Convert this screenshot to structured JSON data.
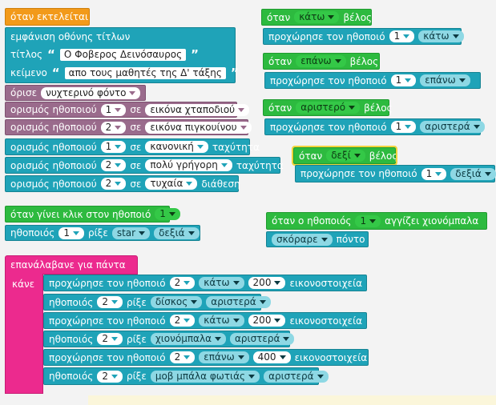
{
  "program": {
    "start_hat": "όταν εκτελείται",
    "title_screen": "εμφάνιση οθόνης τίτλων",
    "title_label": "τίτλος",
    "title_value": "Ο Φοβερος Δεινόσαυρος",
    "text_label": "κείμενο",
    "text_value": "απο τους μαθητές της Δ' τάξης",
    "set_bg": "όρισε",
    "bg_value": "νυχτερινό φόντο",
    "set_actor": "ορισμός ηθοποιού",
    "to": "σε",
    "speed": "ταχύτητα",
    "mood": "διάθεση",
    "actors": [
      {
        "id": "1",
        "image": "εικόνα χταποδιού"
      },
      {
        "id": "2",
        "image": "εικόνα πιγκουίνου"
      }
    ],
    "speeds": [
      {
        "id": "1",
        "value": "κανονική"
      },
      {
        "id": "2",
        "value": "πολύ γρήγορη"
      }
    ],
    "mood_row": {
      "id": "2",
      "value": "τυχαία"
    }
  },
  "click_event": {
    "hat": "όταν γίνει κλικ στον ηθοποιό",
    "actor": "1",
    "actor_label": "ηθοποιός",
    "throw": "ρίξε",
    "item": "star",
    "direction": "δεξιά"
  },
  "arrow_events": [
    {
      "when": "όταν",
      "key": "κάτω",
      "arrow": "βέλος",
      "move": "προχώρησε τον ηθοποιό",
      "actor": "1",
      "dir": "κάτω"
    },
    {
      "when": "όταν",
      "key": "επάνω",
      "arrow": "βέλος",
      "move": "προχώρησε τον ηθοποιό",
      "actor": "1",
      "dir": "επάνω"
    },
    {
      "when": "όταν",
      "key": "αριστερό",
      "arrow": "βέλος",
      "move": "προχώρησε τον ηθοποιό",
      "actor": "1",
      "dir": "αριστερά"
    },
    {
      "when": "όταν",
      "key": "δεξί",
      "arrow": "βέλος",
      "move": "προχώρησε τον ηθοποιό",
      "actor": "1",
      "dir": "δεξιά"
    }
  ],
  "touch_event": {
    "hat_prefix": "όταν ο ηθοποιός",
    "actor": "1",
    "hat_suffix": "αγγίζει χιονόμπαλα",
    "score": "σκόραρε",
    "points": "πόντο"
  },
  "forever": {
    "label": "επανάλαβανε για πάντα",
    "do": "κάνε",
    "move": "προχώρησε τον ηθοποιό",
    "actor_label": "ηθοποιός",
    "throw": "ρίξε",
    "pixels": "εικονοστοιχεία",
    "rows": [
      {
        "actor": "2",
        "dir": "κάτω",
        "amount": "200"
      },
      {
        "actor": "2",
        "item": "δίσκος",
        "dir": "αριστερά"
      },
      {
        "actor": "2",
        "dir": "κάτω",
        "amount": "200"
      },
      {
        "actor": "2",
        "item": "χιονόμπαλα",
        "dir": "αριστερά"
      },
      {
        "actor": "2",
        "dir": "επάνω",
        "amount": "400"
      },
      {
        "actor": "2",
        "item": "μοβ μπάλα φωτιάς",
        "dir": "αριστερά"
      }
    ]
  }
}
